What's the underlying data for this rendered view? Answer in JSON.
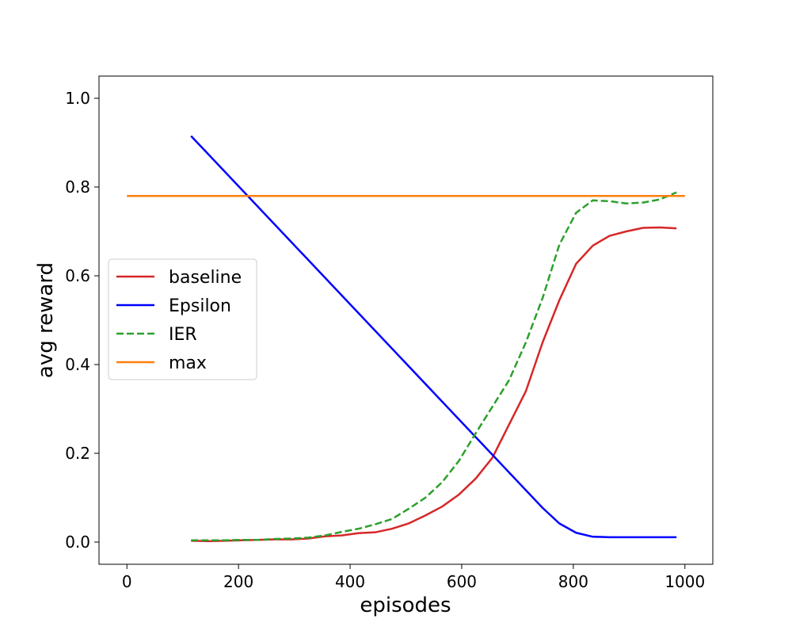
{
  "chart_data": {
    "type": "line",
    "title": "",
    "xlabel": "episodes",
    "ylabel": "avg reward",
    "xlim": [
      -50,
      1050
    ],
    "ylim": [
      -0.05,
      1.05
    ],
    "xticks": [
      0,
      200,
      400,
      600,
      800,
      1000
    ],
    "yticks": [
      0.0,
      0.2,
      0.4,
      0.6,
      0.8,
      1.0
    ],
    "xtick_labels": [
      "0",
      "200",
      "400",
      "600",
      "800",
      "1000"
    ],
    "ytick_labels": [
      "0.0",
      "0.2",
      "0.4",
      "0.6",
      "0.8",
      "1.0"
    ],
    "grid": false,
    "legend": "center-left",
    "series": [
      {
        "name": "baseline",
        "color": "#d62728",
        "dash": "solid",
        "x": [
          115,
          145,
          175,
          205,
          235,
          265,
          295,
          325,
          355,
          385,
          415,
          445,
          475,
          505,
          535,
          565,
          595,
          625,
          655,
          685,
          715,
          745,
          775,
          805,
          835,
          865,
          895,
          925,
          955,
          985
        ],
        "y": [
          0.003,
          0.002,
          0.003,
          0.004,
          0.005,
          0.006,
          0.006,
          0.008,
          0.013,
          0.015,
          0.02,
          0.022,
          0.03,
          0.042,
          0.06,
          0.08,
          0.107,
          0.143,
          0.19,
          0.265,
          0.34,
          0.45,
          0.545,
          0.627,
          0.668,
          0.69,
          0.7,
          0.708,
          0.709,
          0.707
        ]
      },
      {
        "name": "Epsilon",
        "color": "#0000ff",
        "dash": "solid",
        "x": [
          115,
          745,
          775,
          805,
          835,
          865,
          985
        ],
        "y": [
          0.915,
          0.077,
          0.042,
          0.021,
          0.012,
          0.011,
          0.011
        ]
      },
      {
        "name": "IER",
        "color": "#2ca02c",
        "dash": "dashed",
        "x": [
          115,
          145,
          175,
          205,
          235,
          265,
          295,
          325,
          355,
          385,
          415,
          445,
          475,
          505,
          535,
          565,
          595,
          625,
          655,
          685,
          715,
          745,
          775,
          805,
          835,
          865,
          895,
          925,
          955,
          985
        ],
        "y": [
          0.004,
          0.004,
          0.004,
          0.005,
          0.005,
          0.007,
          0.008,
          0.01,
          0.015,
          0.023,
          0.03,
          0.04,
          0.052,
          0.075,
          0.1,
          0.135,
          0.183,
          0.245,
          0.305,
          0.365,
          0.45,
          0.55,
          0.67,
          0.742,
          0.77,
          0.768,
          0.763,
          0.765,
          0.772,
          0.788
        ]
      },
      {
        "name": "max",
        "color": "#ff7f0e",
        "dash": "solid",
        "x": [
          0,
          1000
        ],
        "y": [
          0.78,
          0.78
        ]
      }
    ]
  }
}
